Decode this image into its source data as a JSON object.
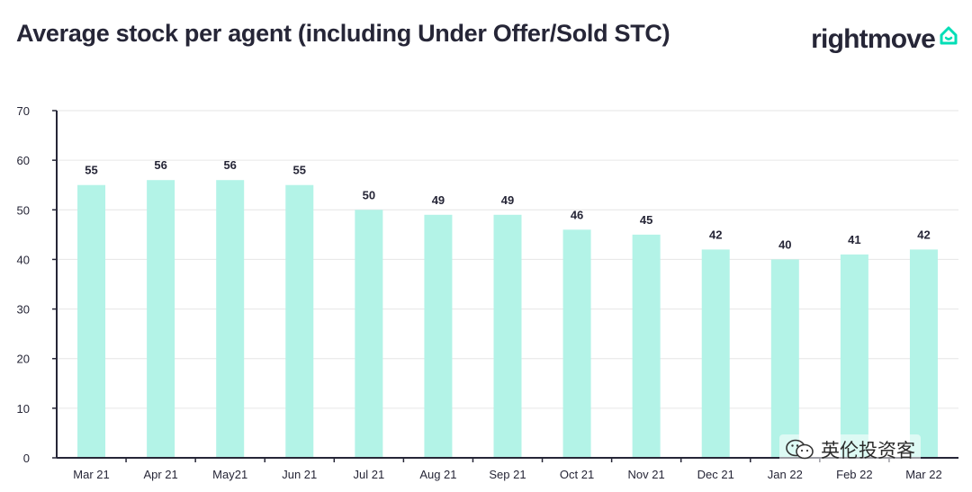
{
  "brand": {
    "name": "rightmove",
    "logo_icon": "house-icon",
    "accent": "#00DEB6"
  },
  "watermark": {
    "text": "英伦投资客",
    "icon": "wechat-icon"
  },
  "colors": {
    "bar": "#B3F3E7",
    "axis": "#262637",
    "grid": "#E6E6E6"
  },
  "chart_data": {
    "type": "bar",
    "title": "Average stock per agent (including Under Offer/Sold STC)",
    "categories": [
      "Mar 21",
      "Apr 21",
      "May21",
      "Jun 21",
      "Jul 21",
      "Aug 21",
      "Sep 21",
      "Oct 21",
      "Nov 21",
      "Dec 21",
      "Jan 22",
      "Feb 22",
      "Mar 22"
    ],
    "values": [
      55,
      56,
      56,
      55,
      50,
      49,
      49,
      46,
      45,
      42,
      40,
      41,
      42
    ],
    "ylim": [
      0,
      70
    ],
    "yticks": [
      0,
      10,
      20,
      30,
      40,
      50,
      60,
      70
    ],
    "grid": true,
    "xlabel": "",
    "ylabel": ""
  }
}
